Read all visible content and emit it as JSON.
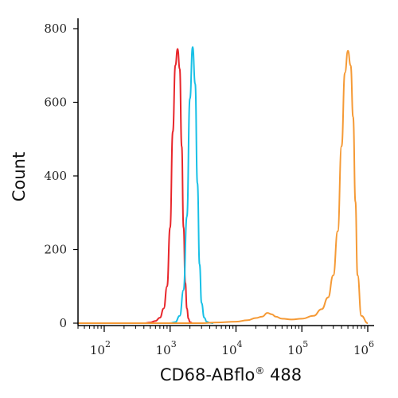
{
  "chart_data": {
    "type": "line",
    "xlabel": "CD68-ABflo",
    "xlabel_superscript": "®",
    "xlabel_suffix": " 488",
    "ylabel": "Count",
    "xscale": "log",
    "xlim": [
      40,
      1000000
    ],
    "ylim": [
      0,
      800
    ],
    "yticks": [
      0,
      200,
      400,
      600,
      800
    ],
    "xticks": [
      {
        "value": 100,
        "base": "10",
        "exp": "2"
      },
      {
        "value": 1000,
        "base": "10",
        "exp": "3"
      },
      {
        "value": 10000,
        "base": "10",
        "exp": "4"
      },
      {
        "value": 100000,
        "base": "10",
        "exp": "5"
      },
      {
        "value": 1000000,
        "base": "10",
        "exp": "6"
      }
    ],
    "grid": false,
    "series": [
      {
        "color": "#e8262b",
        "x": [
          40,
          400,
          500,
          600,
          700,
          800,
          900,
          1000,
          1100,
          1200,
          1300,
          1400,
          1500,
          1600,
          1700,
          1800,
          1900,
          2000,
          2200,
          2600
        ],
        "y": [
          0,
          0,
          2,
          6,
          15,
          40,
          100,
          260,
          520,
          700,
          745,
          690,
          480,
          260,
          110,
          40,
          12,
          3,
          0,
          0
        ]
      },
      {
        "color": "#18c0e6",
        "x": [
          1000,
          1200,
          1400,
          1600,
          1800,
          2000,
          2200,
          2400,
          2600,
          2800,
          3000,
          3300,
          3600,
          4000,
          4500
        ],
        "y": [
          0,
          3,
          20,
          90,
          290,
          610,
          750,
          650,
          380,
          160,
          55,
          15,
          4,
          1,
          0
        ]
      },
      {
        "color": "#f59a36",
        "x": [
          40,
          3000,
          5000,
          10000,
          15000,
          20000,
          25000,
          30000,
          35000,
          40000,
          50000,
          70000,
          100000,
          150000,
          200000,
          250000,
          300000,
          350000,
          400000,
          450000,
          500000,
          550000,
          600000,
          650000,
          700000,
          800000,
          1000000
        ],
        "y": [
          0,
          0,
          2,
          4,
          8,
          14,
          18,
          28,
          24,
          18,
          12,
          10,
          12,
          20,
          38,
          70,
          130,
          250,
          480,
          680,
          740,
          700,
          560,
          330,
          130,
          20,
          0
        ]
      }
    ]
  }
}
